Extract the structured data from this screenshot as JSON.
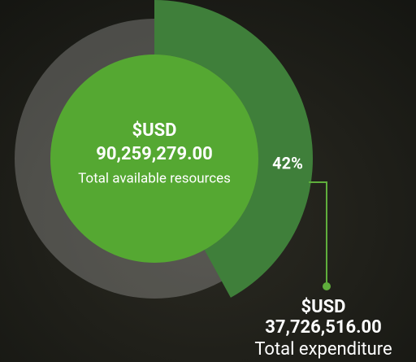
{
  "chart_data": {
    "type": "donut",
    "values": [
      42
    ],
    "value_labels": [
      "42%"
    ],
    "color": "#3f7f3a",
    "center": {
      "currency": "$USD",
      "amount": "90,259,279.00",
      "label": "Total available resources"
    },
    "callout": {
      "currency": "$USD",
      "amount": "37,726,516.00",
      "label": "Total expenditure"
    }
  }
}
